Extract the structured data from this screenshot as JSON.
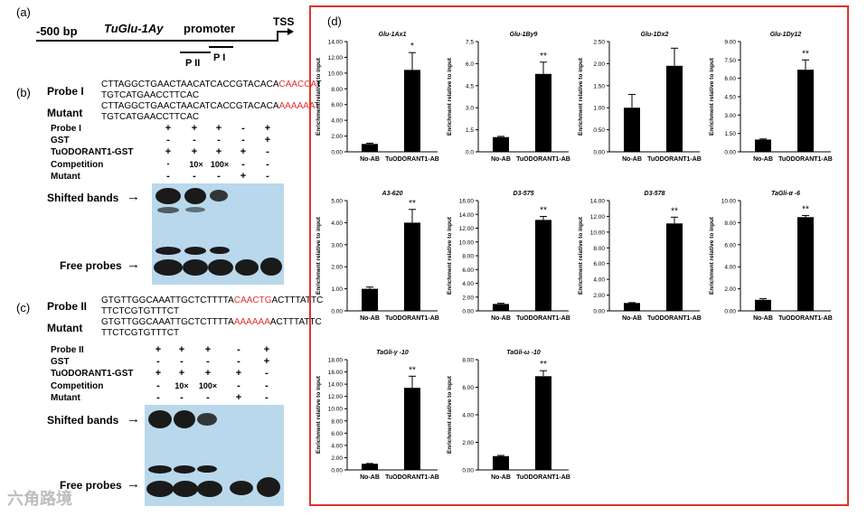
{
  "panel_a": {
    "label": "(a)",
    "left_text": "-500 bp",
    "promoter_name": "TuGlu-1Ay",
    "promoter_word": "promoter",
    "tss": "TSS",
    "p2": "P II",
    "p1": "P I"
  },
  "panel_b": {
    "label": "(b)",
    "probe_label": "Probe I",
    "probe_seq_a": "CTTAGGCTGAACTAACATCACCGTACACA",
    "probe_seq_red": "CAACCA",
    "probe_seq_b": "T",
    "probe_seq_line2": "TGTCATGAACCTTCAC",
    "mutant_label": "Mutant",
    "mutant_seq_a": "CTTAGGCTGAACTAACATCACCGTACACA",
    "mutant_seq_red": "AAAAAA",
    "mutant_seq_b": "T",
    "mutant_seq_line2": "TGTCATGAACCTTCAC",
    "rows": [
      {
        "label": "Probe I",
        "marks": [
          "+",
          "+",
          "+",
          "-",
          "+"
        ]
      },
      {
        "label": "GST",
        "marks": [
          "-",
          "-",
          "-",
          "-",
          "+"
        ]
      },
      {
        "label": "TuODORANT1-GST",
        "marks": [
          "+",
          "+",
          "+",
          "+",
          "-"
        ]
      },
      {
        "label": "Competition",
        "marks": [
          "-",
          "10×",
          "100×",
          "-",
          "-"
        ]
      },
      {
        "label": "Mutant",
        "marks": [
          "-",
          "-",
          "-",
          "+",
          "-"
        ]
      }
    ],
    "shifted_label": "Shifted bands",
    "free_label": "Free probes"
  },
  "panel_c": {
    "label": "(c)",
    "probe_label": "Probe II",
    "probe_seq_a": "GTGTTGGCAAATTGCTCTTTTA",
    "probe_seq_red": "CAACTG",
    "probe_seq_b": "ACTTTATTC",
    "probe_seq_line2": "TTCTCGTGTTTCT",
    "mutant_label": "Mutant",
    "mutant_seq_a": "GTGTTGGCAAATTGCTCTTTTA",
    "mutant_seq_red": "AAAAAA",
    "mutant_seq_b": "ACTTTATTC",
    "mutant_seq_line2": "TTCTCGTGTTTCT",
    "rows": [
      {
        "label": "Probe II",
        "marks": [
          "+",
          "+",
          "+",
          "-",
          "+"
        ]
      },
      {
        "label": "GST",
        "marks": [
          "-",
          "-",
          "-",
          "-",
          "+"
        ]
      },
      {
        "label": "TuODORANT1-GST",
        "marks": [
          "+",
          "+",
          "+",
          "+",
          "-"
        ]
      },
      {
        "label": "Competition",
        "marks": [
          "-",
          "10×",
          "100×",
          "-",
          "-"
        ]
      },
      {
        "label": "Mutant",
        "marks": [
          "-",
          "-",
          "-",
          "+",
          "-"
        ]
      }
    ],
    "shifted_label": "Shifted bands",
    "free_label": "Free probes"
  },
  "panel_d": {
    "label": "(d)"
  },
  "watermark": "六角路境",
  "chart_data": [
    {
      "type": "bar",
      "title": "Glu-1Ax1",
      "categories": [
        "No-AB",
        "TuODORANT1-AB"
      ],
      "values": [
        1.0,
        10.4
      ],
      "errors": [
        0.1,
        2.2
      ],
      "sig": [
        "",
        "*"
      ],
      "ylabel": "Enrichment relative to input",
      "ylim": [
        0,
        14
      ],
      "ticks": [
        "0.00",
        "2.00",
        "4.00",
        "6.00",
        "8.00",
        "10.00",
        "12.00",
        "14.00"
      ]
    },
    {
      "type": "bar",
      "title": "Glu-1By9",
      "categories": [
        "No-AB",
        "TuODORANT1-AB"
      ],
      "values": [
        1.0,
        5.3
      ],
      "errors": [
        0.05,
        0.8
      ],
      "sig": [
        "",
        "**"
      ],
      "ylabel": "Enrichment relative to input",
      "ylim": [
        0,
        7.5
      ],
      "ticks": [
        "0.0",
        "1.5",
        "3.0",
        "4.5",
        "6.0",
        "7.5"
      ]
    },
    {
      "type": "bar",
      "title": "Glu-1Dx2",
      "categories": [
        "No-AB",
        "TuODORANT1-AB"
      ],
      "values": [
        1.0,
        1.95
      ],
      "errors": [
        0.3,
        0.4
      ],
      "sig": [
        "",
        ""
      ],
      "ylabel": "Enrichment relative to input",
      "ylim": [
        0,
        2.5
      ],
      "ticks": [
        "0.00",
        "0.50",
        "1.00",
        "1.50",
        "2.00",
        "2.50"
      ]
    },
    {
      "type": "bar",
      "title": "Glu-1Dy12",
      "categories": [
        "No-AB",
        "TuODORANT1-AB"
      ],
      "values": [
        1.0,
        6.7
      ],
      "errors": [
        0.05,
        0.8
      ],
      "sig": [
        "",
        "**"
      ],
      "ylabel": "Enrichment relative to input",
      "ylim": [
        0,
        9
      ],
      "ticks": [
        "0.00",
        "1.50",
        "3.00",
        "4.50",
        "6.00",
        "7.50",
        "9.00"
      ]
    },
    {
      "type": "bar",
      "title": "A3-620",
      "categories": [
        "No-AB",
        "TuODORANT1-AB"
      ],
      "values": [
        1.0,
        4.0
      ],
      "errors": [
        0.08,
        0.6
      ],
      "sig": [
        "",
        "**"
      ],
      "ylabel": "Enrichment relative to input",
      "ylim": [
        0,
        5
      ],
      "ticks": [
        "0.00",
        "1.00",
        "2.00",
        "3.00",
        "4.00",
        "5.00"
      ]
    },
    {
      "type": "bar",
      "title": "D3-575",
      "categories": [
        "No-AB",
        "TuODORANT1-AB"
      ],
      "values": [
        1.0,
        13.2
      ],
      "errors": [
        0.1,
        0.5
      ],
      "sig": [
        "",
        "**"
      ],
      "ylabel": "Enrichment relative to input",
      "ylim": [
        0,
        16
      ],
      "ticks": [
        "0.00",
        "2.00",
        "4.00",
        "6.00",
        "8.00",
        "10.00",
        "12.00",
        "14.00",
        "16.00"
      ]
    },
    {
      "type": "bar",
      "title": "D3-578",
      "categories": [
        "No-AB",
        "TuODORANT1-AB"
      ],
      "values": [
        1.0,
        11.1
      ],
      "errors": [
        0.05,
        0.8
      ],
      "sig": [
        "",
        "**"
      ],
      "ylabel": "Enrichment relative to input",
      "ylim": [
        0,
        14
      ],
      "ticks": [
        "0.00",
        "2.00",
        "4.00",
        "6.00",
        "8.00",
        "10.00",
        "12.00",
        "14.00"
      ]
    },
    {
      "type": "bar",
      "title": "TaGli-α -6",
      "categories": [
        "No-AB",
        "TuODORANT1-AB"
      ],
      "values": [
        1.0,
        8.5
      ],
      "errors": [
        0.1,
        0.15
      ],
      "sig": [
        "",
        "**"
      ],
      "ylabel": "Enrichment relative to input",
      "ylim": [
        0,
        10
      ],
      "ticks": [
        "0.00",
        "2.00",
        "4.00",
        "6.00",
        "8.00",
        "10.00"
      ]
    },
    {
      "type": "bar",
      "title": "TaGli-γ -10",
      "categories": [
        "No-AB",
        "TuODORANT1-AB"
      ],
      "values": [
        1.0,
        13.4
      ],
      "errors": [
        0.05,
        1.9
      ],
      "sig": [
        "",
        "**"
      ],
      "ylabel": "Enrichment relative to input",
      "ylim": [
        0,
        18
      ],
      "ticks": [
        "0.00",
        "2.00",
        "4.00",
        "6.00",
        "8.00",
        "10.00",
        "12.00",
        "14.00",
        "16.00",
        "18.00"
      ]
    },
    {
      "type": "bar",
      "title": "TaGli-ω -10",
      "categories": [
        "No-AB",
        "TuODORANT1-AB"
      ],
      "values": [
        1.0,
        6.8
      ],
      "errors": [
        0.05,
        0.4
      ],
      "sig": [
        "",
        "**"
      ],
      "ylabel": "Enrichment relative to input",
      "ylim": [
        0,
        8
      ],
      "ticks": [
        "0.00",
        "2.00",
        "4.00",
        "6.00",
        "8.00"
      ]
    }
  ]
}
